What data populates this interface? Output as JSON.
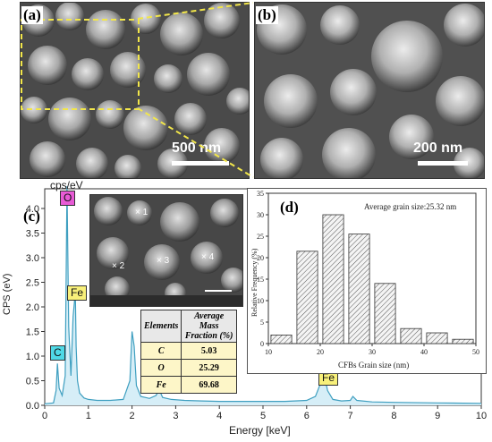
{
  "panel_a": {
    "label": "(a)",
    "scale": "500 nm"
  },
  "panel_b": {
    "label": "(b)",
    "scale": "200 nm"
  },
  "panel_c": {
    "label": "(c)",
    "unit_top": "cps/eV",
    "ylabel": "CPS (eV)",
    "xlabel": "Energy [keV]",
    "inset_points": [
      "1",
      "2",
      "3",
      "4"
    ],
    "peaks": {
      "C": "C",
      "O": "O",
      "Fe1": "Fe",
      "Fe2": "Fe"
    },
    "colors": {
      "C": "#4fd9e6",
      "O": "#e85ad6",
      "Fe": "#f8f07a",
      "spectrum": "#3f9fc0"
    },
    "table": {
      "headers": [
        "Elements",
        "Average Mass Fraction (%)"
      ],
      "rows": [
        {
          "el": "C",
          "val": "5.03"
        },
        {
          "el": "O",
          "val": "25.29"
        },
        {
          "el": "Fe",
          "val": "69.68"
        }
      ]
    }
  },
  "panel_d": {
    "label": "(d)",
    "annotation": "Average grain size:25.32 nm"
  },
  "chart_data": [
    {
      "type": "line",
      "xlabel": "Energy [keV]",
      "ylabel": "CPS (eV)",
      "xlim": [
        0,
        10
      ],
      "ylim": [
        0,
        4.4
      ],
      "x_ticks": [
        "0",
        "1",
        "2",
        "3",
        "4",
        "5",
        "6",
        "7",
        "8",
        "9",
        "10"
      ],
      "y_ticks": [
        "0.0",
        "0.5",
        "1.0",
        "1.5",
        "2.0",
        "2.5",
        "3.0",
        "3.5",
        "4.0"
      ],
      "x": [
        0.0,
        0.2,
        0.26,
        0.29,
        0.33,
        0.4,
        0.47,
        0.51,
        0.55,
        0.6,
        0.65,
        0.7,
        0.72,
        0.75,
        0.8,
        0.9,
        1.0,
        1.2,
        1.5,
        1.8,
        1.95,
        2.0,
        2.05,
        2.1,
        2.2,
        2.4,
        2.55,
        2.62,
        2.7,
        2.9,
        3.2,
        3.6,
        4.0,
        4.5,
        5.0,
        5.5,
        6.0,
        6.2,
        6.32,
        6.4,
        6.48,
        6.6,
        6.8,
        7.0,
        7.06,
        7.15,
        7.5,
        8.0,
        9.0,
        10.0
      ],
      "y": [
        0.03,
        0.05,
        0.3,
        0.85,
        0.35,
        0.2,
        0.6,
        4.45,
        1.6,
        0.6,
        1.8,
        2.3,
        1.2,
        0.5,
        0.25,
        0.15,
        0.12,
        0.1,
        0.1,
        0.12,
        0.5,
        1.5,
        1.2,
        0.4,
        0.18,
        0.14,
        0.2,
        0.32,
        0.16,
        0.12,
        0.1,
        0.09,
        0.08,
        0.08,
        0.08,
        0.08,
        0.1,
        0.18,
        0.45,
        0.62,
        0.3,
        0.12,
        0.09,
        0.1,
        0.18,
        0.1,
        0.07,
        0.06,
        0.05,
        0.04
      ]
    },
    {
      "type": "bar",
      "xlabel": "CFBs Grain size (nm)",
      "ylabel": "Relative Frequency (%)",
      "xlim": [
        10,
        50
      ],
      "ylim": [
        0,
        35
      ],
      "x_ticks": [
        "10",
        "20",
        "30",
        "40",
        "50"
      ],
      "y_ticks": [
        "0",
        "5",
        "10",
        "15",
        "20",
        "25",
        "30",
        "35"
      ],
      "bin_centers": [
        12.5,
        17.5,
        22.5,
        27.5,
        32.5,
        37.5,
        42.5,
        47.5
      ],
      "values": [
        2.0,
        21.5,
        30.0,
        25.5,
        14.0,
        3.5,
        2.5,
        1.0
      ]
    }
  ]
}
